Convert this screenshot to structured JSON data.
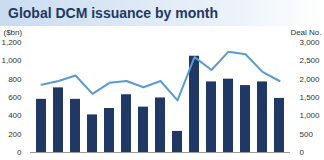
{
  "chart_data": {
    "type": "bar",
    "title": "Global DCM issuance by month",
    "categories": [
      null,
      null,
      null,
      null,
      null,
      null,
      null,
      null,
      null,
      null,
      null,
      null,
      null,
      null,
      null
    ],
    "series": [
      {
        "name": "DCM issuance",
        "type": "bar",
        "color": "#1f3864",
        "values": [
          580,
          705,
          580,
          410,
          480,
          630,
          495,
          595,
          230,
          1050,
          770,
          800,
          730,
          770,
          590
        ]
      },
      {
        "name": "Deal No.",
        "type": "line",
        "axis": "y2",
        "color": "#5b9bd5",
        "values": [
          1850,
          1950,
          2100,
          1600,
          1900,
          1950,
          1780,
          1950,
          1420,
          2600,
          2250,
          2750,
          2680,
          2200,
          1950
        ]
      }
    ],
    "ylabel": "($bn)",
    "y2label": "Deal No.",
    "ylim": [
      0,
      1200
    ],
    "yticks": [
      0,
      200,
      400,
      600,
      800,
      {
        "value": 1000,
        "label": "1,000"
      },
      {
        "value": 1200,
        "label": "1,200"
      }
    ],
    "y2lim": [
      0,
      3000
    ],
    "y2ticks": [
      0,
      500,
      {
        "value": 1000,
        "label": "1,000"
      },
      {
        "value": 1500,
        "label": "1,500"
      },
      {
        "value": 2000,
        "label": "2,000"
      },
      {
        "value": 2500,
        "label": "2,500"
      },
      {
        "value": 3000,
        "label": "3,000"
      }
    ],
    "grid": false
  }
}
